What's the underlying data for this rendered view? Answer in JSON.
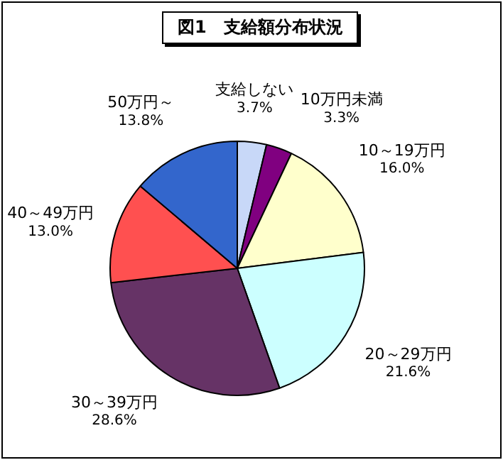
{
  "chart_data": {
    "type": "pie",
    "title": "図1　支給額分布状況",
    "categories": [
      "支給しない",
      "10万円未満",
      "10～19万円",
      "20～29万円",
      "30～39万円",
      "40～49万円",
      "50万円～"
    ],
    "values": [
      3.7,
      3.3,
      16.0,
      21.6,
      28.6,
      13.0,
      13.8
    ],
    "value_labels": [
      "3.7%",
      "3.3%",
      "16.0%",
      "21.6%",
      "28.6%",
      "13.0%",
      "13.8%"
    ],
    "colors": [
      "#c8d8f8",
      "#800080",
      "#ffffcc",
      "#ccffff",
      "#663366",
      "#ff5050",
      "#3366cc"
    ],
    "legend": false
  }
}
